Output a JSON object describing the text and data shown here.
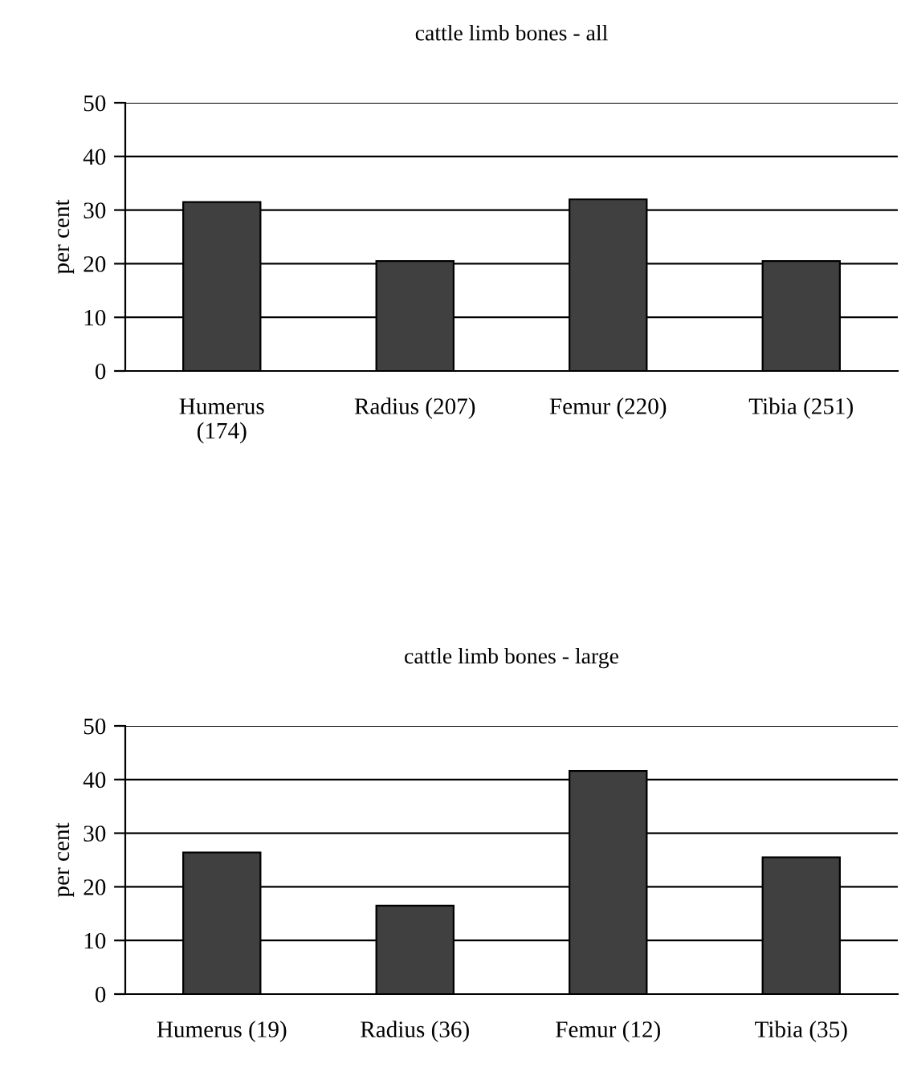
{
  "chart_data": [
    {
      "type": "bar",
      "title": "cattle limb bones - all",
      "ylabel": "per cent",
      "categories": [
        "Humerus (174)",
        "Radius (207)",
        "Femur (220)",
        "Tibia (251)"
      ],
      "values": [
        31.5,
        20.5,
        32.0,
        20.5
      ],
      "color": "#404040",
      "ylim": [
        0,
        50
      ],
      "yticks": [
        0,
        10,
        20,
        30,
        40,
        50
      ],
      "grid": "y"
    },
    {
      "type": "bar",
      "title": "cattle limb bones - large",
      "ylabel": "per cent",
      "categories": [
        "Humerus (19)",
        "Radius (36)",
        "Femur (12)",
        "Tibia (35)"
      ],
      "values": [
        26.4,
        16.5,
        41.6,
        25.5
      ],
      "color": "#404040",
      "ylim": [
        0,
        50
      ],
      "yticks": [
        0,
        10,
        20,
        30,
        40,
        50
      ],
      "grid": "y"
    }
  ]
}
